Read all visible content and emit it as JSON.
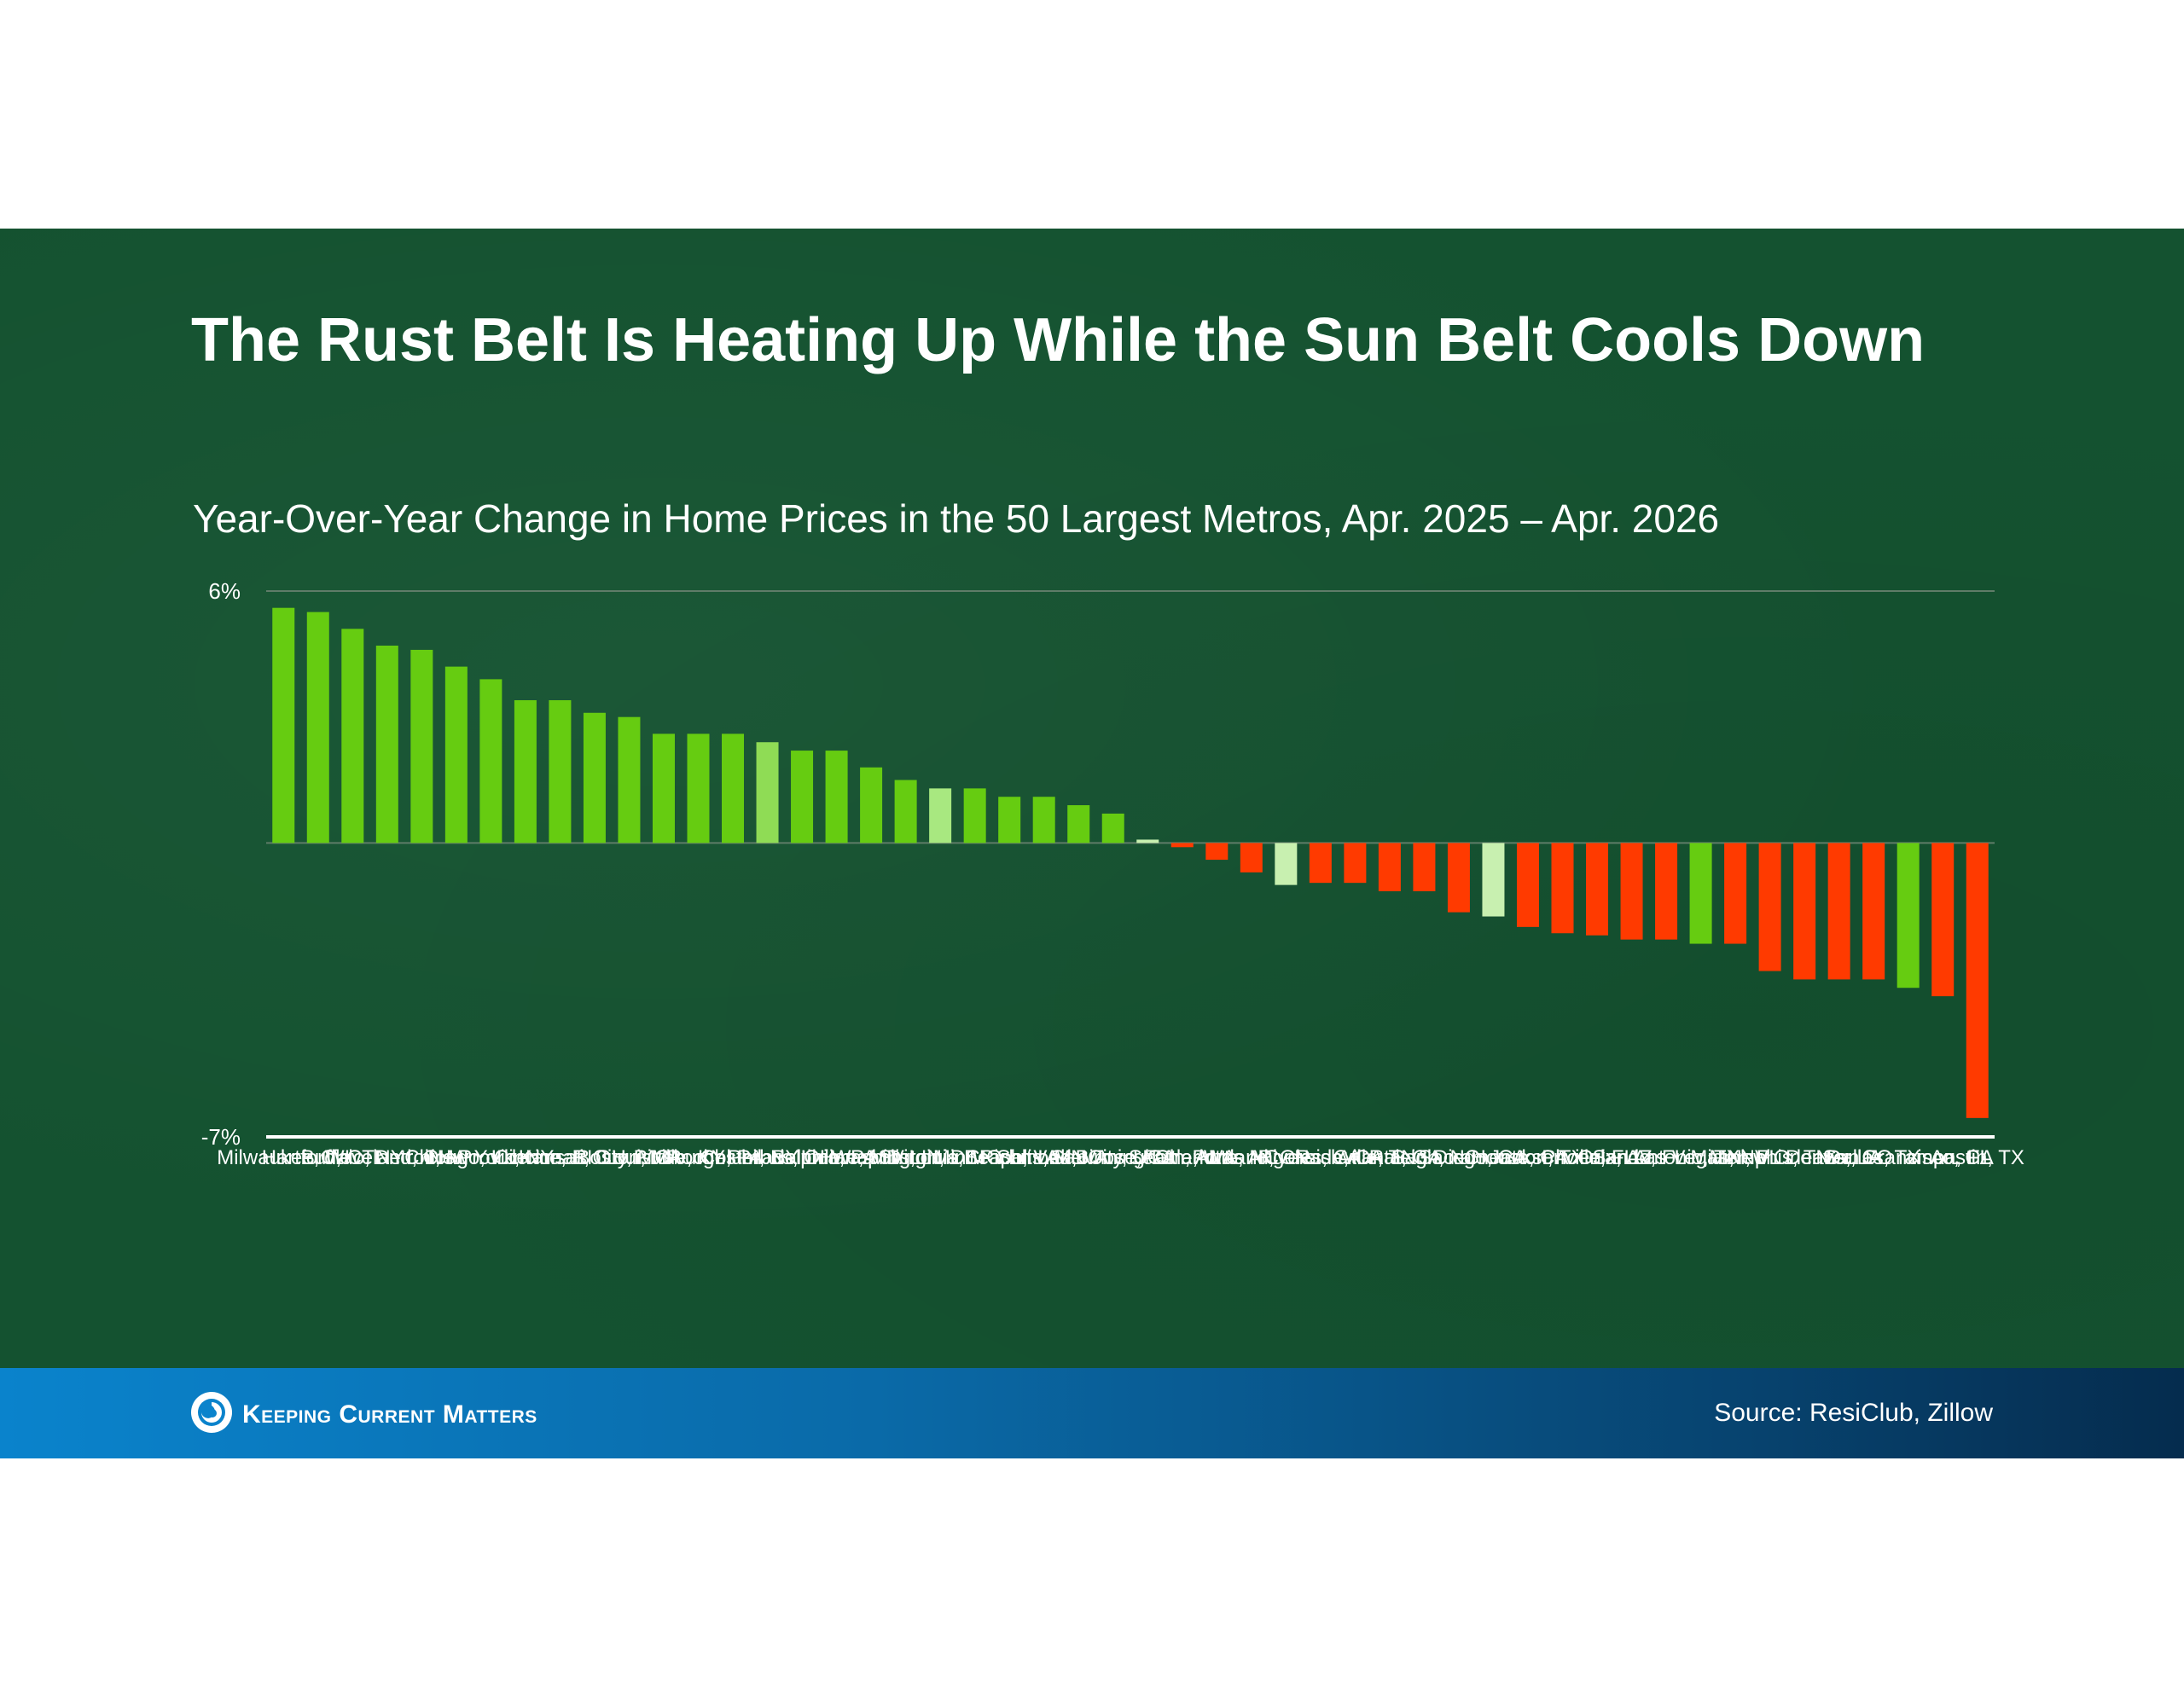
{
  "title": "The Rust Belt Is Heating Up While the Sun Belt Cools Down",
  "footer": {
    "brand": "Keeping Current Matters",
    "source": "Source: ResiClub, Zillow"
  },
  "colors": {
    "background": "#145230",
    "positive": "#66cc11",
    "negative": "#ff3a00",
    "highlight_light": "#a8e880",
    "highlight_medium": "#8fdc55",
    "highlight_pale": "#c8f0b0",
    "axis": "#ffffff",
    "gridline": "#5f7c68"
  },
  "chart_data": {
    "type": "bar",
    "title": "Year-Over-Year Change in Home Prices in the 50 Largest Metros, Apr. 2025 – Apr. 2026",
    "xlabel": "",
    "ylabel": "",
    "ylim": [
      -7,
      6
    ],
    "yticks": [
      "6%",
      "-7%"
    ],
    "grid": true,
    "legend": "none",
    "categories": [
      "Milwaukee, WI",
      "Hartford, CT",
      "Buffalo, NY",
      "Cleveland, OH",
      "Detroit, MI",
      "Chicago, IL",
      "New York, NY",
      "Providence, RI",
      "Cincinnati, OH",
      "Kansas City, MO",
      "Boston, MA",
      "Louisville, KY",
      "Pittsburgh, PA",
      "Rochester, NY",
      "Columbus, OH",
      "Philadelphia, PA",
      "Baltimore, MD",
      "Indianapolis, IN",
      "Washington, DC",
      "St. Louis, MO",
      "Virginia Beach, VA",
      "Minneapolis, MN",
      "Richmond, VA",
      "Salt Lake City, UT",
      "San Jose, CA",
      "Birmingham, AL",
      "Seattle, WA",
      "Charlotte, NC",
      "Portland, OR",
      "Los Angeles, CA",
      "Riverside, CA",
      "Nashville, TN",
      "Atlanta, GA",
      "Raleigh, NC",
      "San Diego, CA",
      "Sacramento, CA",
      "Houston, TX",
      "Jacksonville, FL",
      "Phoenix, AZ",
      "Orlando, FL",
      "San Antonio, TX",
      "Las Vegas, NV",
      "Miami, FL",
      "Memphis, TN",
      "New Orleans, LA",
      "Denver, CO",
      "Dallas, TX",
      "San Francisco, CA",
      "Tampa, FL",
      "Austin, TX"
    ],
    "values": [
      5.6,
      5.5,
      5.1,
      4.7,
      4.6,
      4.2,
      3.9,
      3.4,
      3.4,
      3.1,
      3.0,
      2.6,
      2.6,
      2.6,
      2.4,
      2.2,
      2.2,
      1.8,
      1.5,
      1.3,
      1.3,
      1.1,
      1.1,
      0.9,
      0.7,
      0.08,
      -0.1,
      -0.4,
      -0.7,
      -1.0,
      -0.95,
      -0.95,
      -1.15,
      -1.15,
      -1.65,
      -1.75,
      -2.0,
      -2.15,
      -2.2,
      -2.3,
      -2.3,
      -2.4,
      -2.4,
      -3.05,
      -3.25,
      -3.25,
      -3.25,
      -3.45,
      -3.65,
      -6.55
    ],
    "colors": [
      "#66cc11",
      "#66cc11",
      "#66cc11",
      "#66cc11",
      "#66cc11",
      "#66cc11",
      "#66cc11",
      "#66cc11",
      "#66cc11",
      "#66cc11",
      "#66cc11",
      "#66cc11",
      "#66cc11",
      "#66cc11",
      "#8fdc55",
      "#66cc11",
      "#66cc11",
      "#66cc11",
      "#66cc11",
      "#a8e880",
      "#66cc11",
      "#66cc11",
      "#66cc11",
      "#66cc11",
      "#66cc11",
      "#c8f0b0",
      "#ff3a00",
      "#ff3a00",
      "#ff3a00",
      "#c8f0b0",
      "#ff3a00",
      "#ff3a00",
      "#ff3a00",
      "#ff3a00",
      "#ff3a00",
      "#c8f0b0",
      "#ff3a00",
      "#ff3a00",
      "#ff3a00",
      "#ff3a00",
      "#ff3a00",
      "#66cc11",
      "#ff3a00",
      "#ff3a00",
      "#ff3a00",
      "#ff3a00",
      "#ff3a00",
      "#66cc11",
      "#ff3a00",
      "#ff3a00"
    ]
  }
}
